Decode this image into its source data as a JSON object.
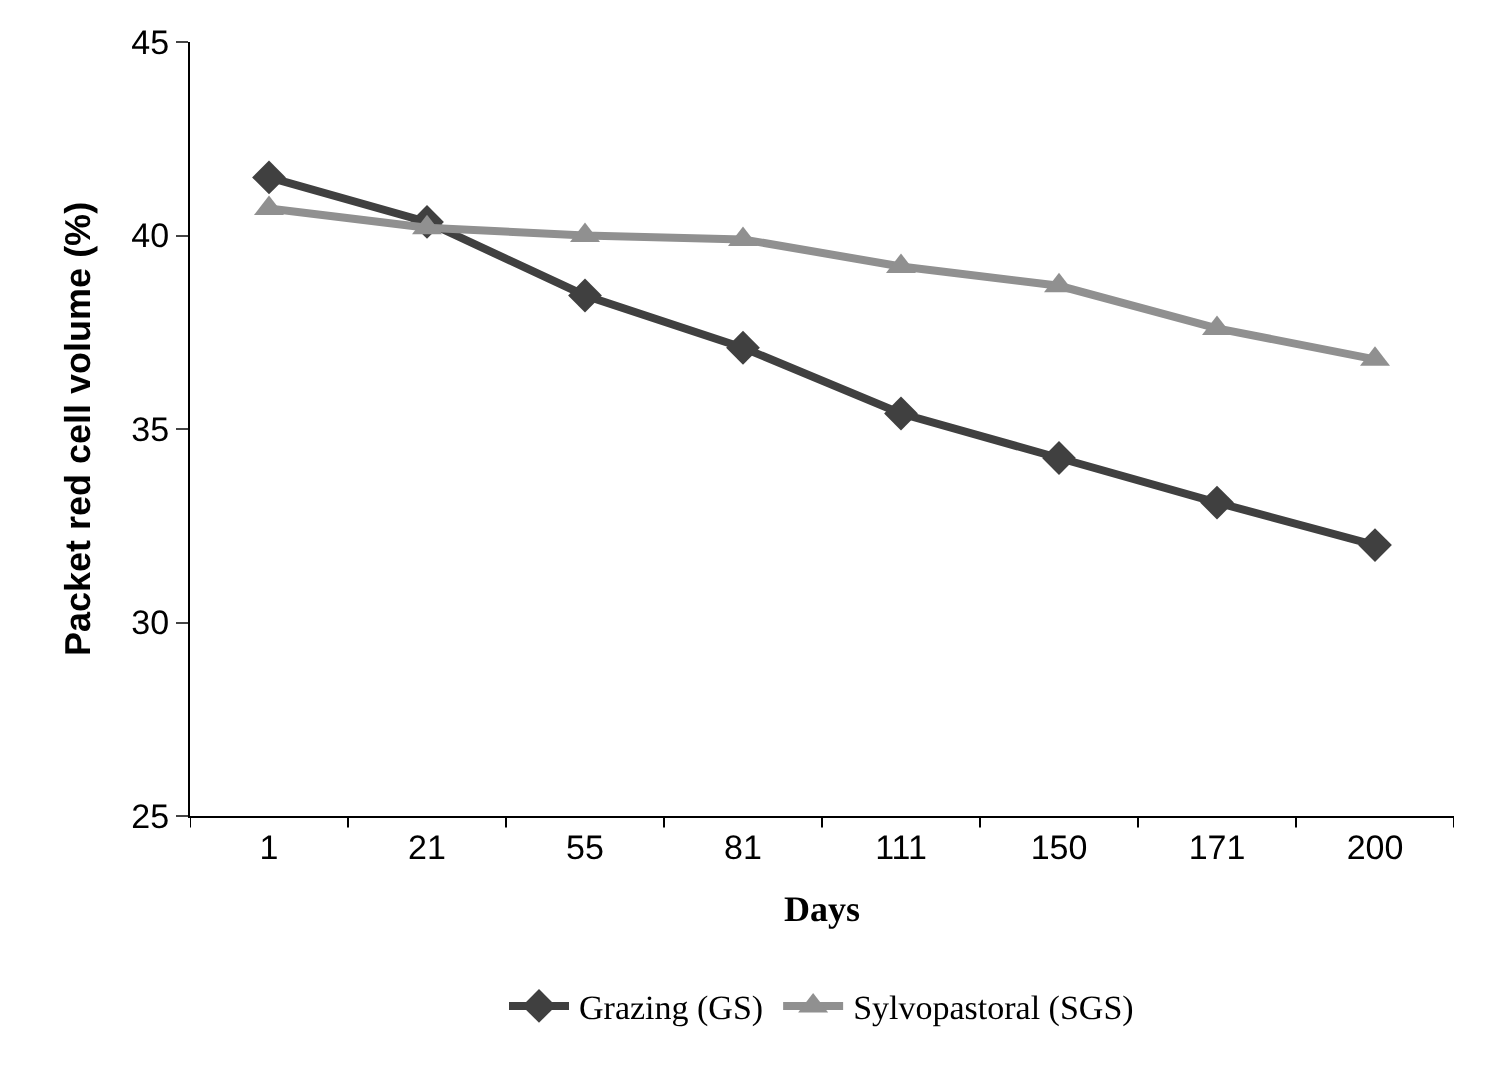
{
  "chart_data": {
    "type": "line",
    "xlabel": "Days",
    "ylabel": "Packet red cell volume (%)",
    "categories": [
      "1",
      "21",
      "55",
      "81",
      "111",
      "150",
      "171",
      "200"
    ],
    "series": [
      {
        "name": "Grazing (GS)",
        "color": "#404040",
        "marker": "diamond",
        "values": [
          41.5,
          40.35,
          38.45,
          37.1,
          35.4,
          34.25,
          33.1,
          32.0
        ]
      },
      {
        "name": "Sylvopastoral (SGS)",
        "color": "#909090",
        "marker": "triangle",
        "values": [
          40.7,
          40.2,
          40.0,
          39.9,
          39.2,
          38.7,
          37.6,
          36.8
        ]
      }
    ],
    "ylim": [
      25,
      45
    ],
    "yticks": [
      25,
      30,
      35,
      40,
      45
    ],
    "legend": "bottom",
    "line_style": "solid"
  }
}
